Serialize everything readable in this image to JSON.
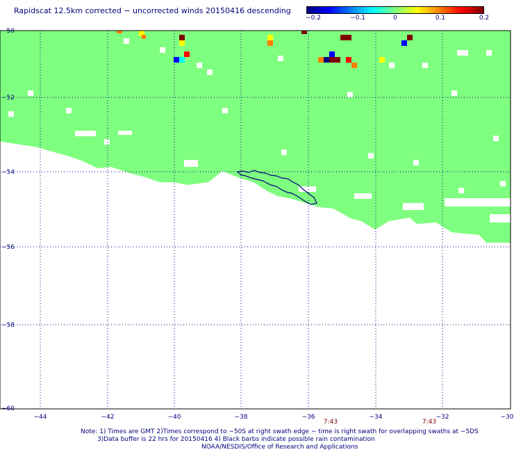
{
  "title": "Rapidscat 12.5km corrected − uncorrected winds 20150416 descending",
  "colorbar": {
    "ticks": [
      "−0.2",
      "−0.1",
      "0",
      "0.1",
      "0.2"
    ],
    "colors": [
      "#00007f",
      "#0000ff",
      "#007fff",
      "#00ffff",
      "#7fff7f",
      "#ffff00",
      "#ff7f00",
      "#ff0000",
      "#7f0000"
    ]
  },
  "map": {
    "lon_labels": [
      "−44",
      "−42",
      "−40",
      "−38",
      "−36",
      "−34",
      "−32",
      "−30"
    ],
    "lat_labels": [
      "−50",
      "−52",
      "−54",
      "−56",
      "−58",
      "−60"
    ],
    "time_labels": [
      "7:43",
      "7:43"
    ],
    "swath_color": "#7fff7f",
    "coast_color": "#00007f",
    "time_color": "#7f0000"
  },
  "notes": {
    "line1": "Note: 1) Times are GMT 2)Times correspond to −50S at right swath edge − time is right swath for overlapping swaths at −5DS",
    "line2": "3)Data buffer is 22 hrs for 20150416 4) Black barbs indicate possible rain contamination",
    "line3": "NOAA/NESDIS/Office of Research and Applications"
  }
}
